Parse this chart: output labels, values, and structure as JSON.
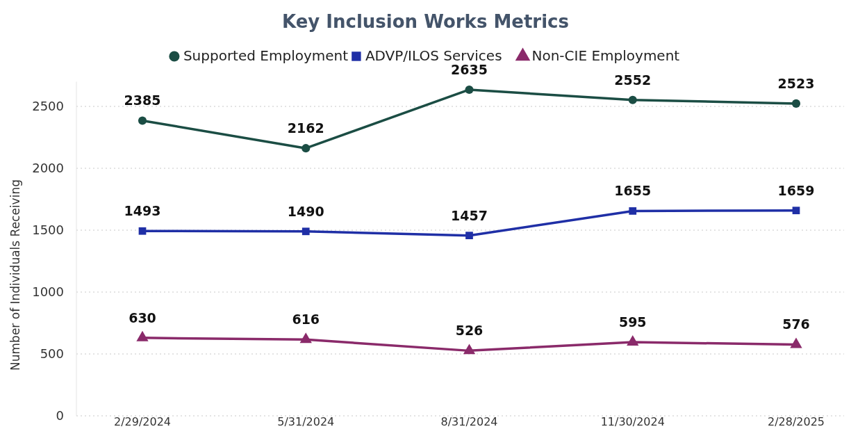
{
  "chart_data": {
    "type": "line",
    "title": "Key Inclusion Works Metrics",
    "ylabel": "Number of Individuals Receiving",
    "categories": [
      "2/29/2024",
      "5/31/2024",
      "8/31/2024",
      "11/30/2024",
      "2/28/2025"
    ],
    "series": [
      {
        "name": "Supported Employment",
        "color": "#1b4d44",
        "marker": "circle",
        "values": [
          2385,
          2162,
          2635,
          2552,
          2523
        ]
      },
      {
        "name": "ADVP/ILOS Services",
        "color": "#1f2fa6",
        "marker": "square",
        "values": [
          1493,
          1490,
          1457,
          1655,
          1659
        ]
      },
      {
        "name": "Non-CIE Employment",
        "color": "#8a2a6a",
        "marker": "triangle",
        "values": [
          630,
          616,
          526,
          595,
          576
        ]
      }
    ],
    "ylim": [
      0,
      2700
    ],
    "yticks": [
      0,
      500,
      1000,
      1500,
      2000,
      2500
    ],
    "grid": "y",
    "legend": "top",
    "data_labels": true
  }
}
